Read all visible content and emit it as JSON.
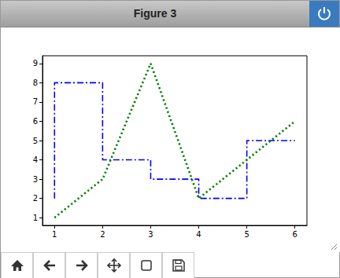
{
  "chart_data": {
    "type": "line",
    "title": "Figure 3",
    "x": [
      1,
      2,
      3,
      4,
      5,
      6
    ],
    "series": [
      {
        "type": "step",
        "color": "#0000ff",
        "line_style": "dashdot",
        "values": [
          2,
          8,
          4,
          3,
          2,
          5
        ]
      },
      {
        "type": "line",
        "color": "#008000",
        "line_style": "dotted",
        "values": [
          1,
          3,
          9,
          2,
          4,
          6
        ]
      }
    ],
    "xlim": [
      0.75,
      6.25
    ],
    "xticks": [
      1,
      2,
      3,
      4,
      5,
      6
    ],
    "ylim": [
      0.6,
      9.4
    ],
    "yticks": [
      1,
      2,
      3,
      4,
      5,
      6,
      7,
      8,
      9
    ],
    "grid": false
  }
}
